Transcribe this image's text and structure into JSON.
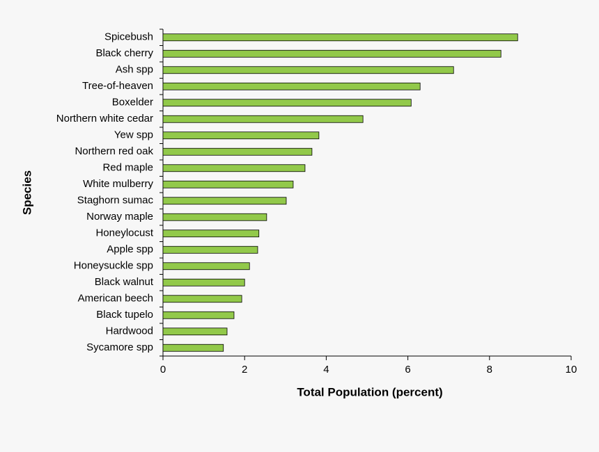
{
  "chart_data": {
    "type": "hbar",
    "categories": [
      "Spicebush",
      "Black cherry",
      "Ash spp",
      "Tree-of-heaven",
      "Boxelder",
      "Northern white cedar",
      "Yew spp",
      "Northern red oak",
      "Red maple",
      "White mulberry",
      "Staghorn sumac",
      "Norway maple",
      "Honeylocust",
      "Apple spp",
      "Honeysuckle spp",
      "Black walnut",
      "American beech",
      "Black tupelo",
      "Hardwood",
      "Sycamore spp"
    ],
    "values": [
      8.69,
      8.28,
      7.12,
      6.3,
      6.08,
      4.9,
      3.82,
      3.65,
      3.48,
      3.19,
      3.02,
      2.54,
      2.35,
      2.32,
      2.12,
      2.0,
      1.93,
      1.74,
      1.57,
      1.48
    ],
    "color": "#92c94a",
    "xlim": [
      0,
      10
    ],
    "xticks": [
      0,
      2,
      4,
      6,
      8,
      10
    ],
    "x_label": "Total Population (percent)",
    "y_label": "Species"
  }
}
